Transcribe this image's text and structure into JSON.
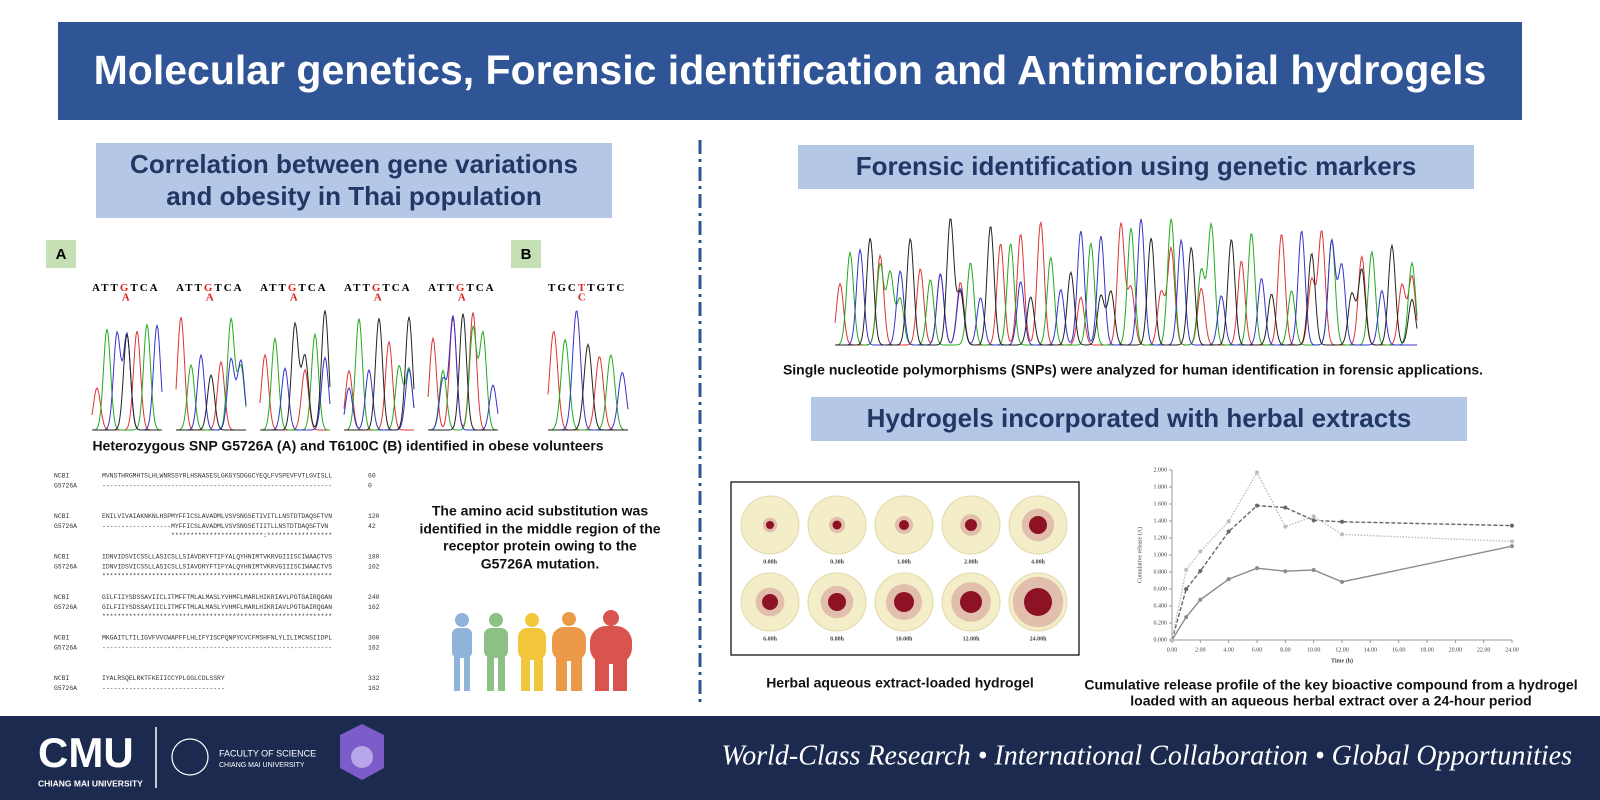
{
  "header": {
    "title": "Molecular genetics, Forensic identification and Antimicrobial hydrogels"
  },
  "left": {
    "heading": [
      "Correlation between gene variations",
      "and obesity in Thai population"
    ],
    "panel_a": {
      "label": "A",
      "sequences": [
        {
          "before": "ATT",
          "snp": "G",
          "after": "TCA",
          "alt": "A"
        },
        {
          "before": "ATT",
          "snp": "G",
          "after": "TCA",
          "alt": "A"
        },
        {
          "before": "ATT",
          "snp": "G",
          "after": "TCA",
          "alt": "A"
        },
        {
          "before": "ATT",
          "snp": "G",
          "after": "TCA",
          "alt": "A"
        },
        {
          "before": "ATT",
          "snp": "G",
          "after": "TCA",
          "alt": "A"
        }
      ]
    },
    "panel_b": {
      "label": "B",
      "sequences": [
        {
          "before": "TGC",
          "snp": "T",
          "after": "TGTC",
          "alt": "C"
        }
      ]
    },
    "caption": "Heterozygous SNP G5726A (A) and T6100C (B) identified in obese volunteers",
    "alignment": [
      {
        "rows": [
          [
            "NCBI",
            "MVNSTHRGMHTSLHLWNRSSYRLHSNASESLGKGYSDGGCYEQLFVSPEVFVTLGVISLL",
            60
          ],
          [
            "G5726A",
            "------------------------------------------------------------",
            0
          ]
        ]
      },
      {
        "rows": [
          [
            "NCBI",
            "ENILVIVAIAKNKNLHSPMYFFICSLAVADMLVSVSNGSETIVITLLNSTDTDAQSFTVN",
            120
          ],
          [
            "G5726A",
            "------------------MYFFICSLAVADMLVSVSNGSETIITLLNSTDTDAQSFTVN",
            42
          ]
        ],
        "stars": "                  ************************:*****************"
      },
      {
        "rows": [
          [
            "NCBI",
            "IDNVIDSVICSSLLASICSLLSIAVDRYFTIFYALQYHNIMTVKRVGIIISCIWAACTVS",
            180
          ],
          [
            "G5726A",
            "IDNVIDSVICSSLLASICSLLSIAVDRYFTIFYALQYHNIMTVKRVGIIISCIWAACTVS",
            102
          ]
        ],
        "stars": "************************************************************"
      },
      {
        "rows": [
          [
            "NCBI",
            "GILFIIYSDSSAVIICLITMFFTMLALMASLYVHMFLMARLHIKRIAVLPGTGAIRQGAN",
            240
          ],
          [
            "G5726A",
            "GILFIIYSDSSAVIICLITMFFTMLALMASLYVHMFLMARLHIKRIAVLPGTGAIRQGAN",
            162
          ]
        ],
        "stars": "************************************************************"
      },
      {
        "rows": [
          [
            "NCBI",
            "MKGAITLTILIGVFVVCWAPFFLHLIFYISCPQNPYCVCFMSHFNLYLILIMCNSIIDPL",
            300
          ],
          [
            "G5726A",
            "------------------------------------------------------------",
            162
          ]
        ]
      },
      {
        "rows": [
          [
            "NCBI",
            "IYALRSQELRKTFKEIICCYPLGGLCDLSSRY",
            332
          ],
          [
            "G5726A",
            "--------------------------------",
            162
          ]
        ]
      }
    ],
    "note": [
      "The amino acid substitution was",
      "identified in the middle region of the",
      "receptor protein owing to the",
      "G5726A mutation."
    ]
  },
  "right": {
    "heading1": "Forensic identification using genetic markers",
    "caption1": "Single nucleotide polymorphisms (SNPs) were analyzed for human identification in forensic applications.",
    "heading2": "Hydrogels incorporated with herbal extracts",
    "dish_labels": [
      "0.00h",
      "0.30h",
      "1.00h",
      "2.00h",
      "4.00h",
      "6.00h",
      "8.00h",
      "10.00h",
      "12.00h",
      "24.00h"
    ],
    "caption2": "Herbal aqueous extract-loaded hydrogel",
    "caption3": [
      "Cumulative release profile of the key bioactive compound from a hydrogel",
      "loaded with an aqueous herbal extract over a 24-hour period"
    ]
  },
  "chart_data": {
    "type": "line",
    "x_label": "Time (h)",
    "y_label": "Cumulative release (A)",
    "x": [
      0,
      1,
      2,
      4,
      6,
      8,
      10,
      12,
      24
    ],
    "series": [
      {
        "color": "#8c8c8c",
        "style": "solid",
        "values": [
          0,
          0.269,
          0.473,
          0.716,
          0.845,
          0.809,
          0.824,
          0.684,
          1.104
        ]
      },
      {
        "color": "#666666",
        "style": "dashed",
        "values": [
          0,
          0.599,
          0.812,
          1.276,
          1.581,
          1.558,
          1.408,
          1.391,
          1.346
        ]
      },
      {
        "color": "#bdbdbd",
        "style": "dotted",
        "values": [
          0,
          0.826,
          1.041,
          1.396,
          1.97,
          1.334,
          1.455,
          1.242,
          1.16
        ]
      }
    ],
    "xlim": [
      0,
      24
    ],
    "xticks": [
      {
        "value": 0,
        "label": "0.00"
      },
      {
        "value": 2,
        "label": "2.00"
      },
      {
        "value": 4,
        "label": "4.00"
      },
      {
        "value": 6,
        "label": "6.00"
      },
      {
        "value": 8,
        "label": "8.00"
      },
      {
        "value": 10,
        "label": "10.00"
      },
      {
        "value": 12,
        "label": "12.00"
      },
      {
        "value": 14,
        "label": "14.00"
      },
      {
        "value": 16,
        "label": "16.00"
      },
      {
        "value": 18,
        "label": "18.00"
      },
      {
        "value": 20,
        "label": "20.00"
      },
      {
        "value": 22,
        "label": "22.00"
      },
      {
        "value": 24,
        "label": "24.00"
      }
    ],
    "ylim": [
      0,
      2
    ],
    "yticks": [
      {
        "value": 0,
        "label": "0.000"
      },
      {
        "value": 0.2,
        "label": "0.200"
      },
      {
        "value": 0.4,
        "label": "0.400"
      },
      {
        "value": 0.6,
        "label": "0.600"
      },
      {
        "value": 0.8,
        "label": "0.800"
      },
      {
        "value": 1,
        "label": "1.000"
      },
      {
        "value": 1.2,
        "label": "1.200"
      },
      {
        "value": 1.4,
        "label": "1.400"
      },
      {
        "value": 1.6,
        "label": "1.600"
      },
      {
        "value": 1.8,
        "label": "1.800"
      },
      {
        "value": 2,
        "label": "2.000"
      }
    ]
  },
  "footer": {
    "logo": "CMU",
    "university": "CHIANG MAI UNIVERSITY",
    "faculty": "FACULTY OF SCIENCE",
    "faculty_university": "CHIANG MAI UNIVERSITY",
    "tagline": "World-Class Research • International Collaboration • Global Opportunities"
  }
}
